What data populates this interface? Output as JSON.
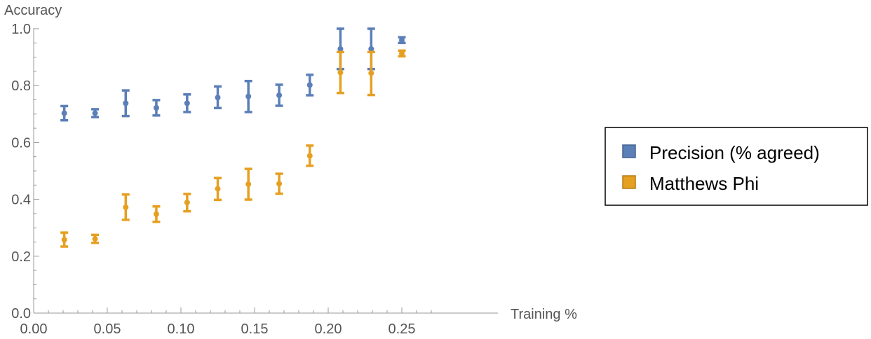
{
  "chart_data": {
    "type": "scatter",
    "title": "",
    "xlabel": "Training %",
    "ylabel": "Accuracy",
    "xlim": [
      0,
      0.27
    ],
    "ylim": [
      0,
      1.0
    ],
    "x_ticks": [
      0.0,
      0.05,
      0.1,
      0.15,
      0.2,
      0.25
    ],
    "x_tick_labels": [
      "0.00",
      "0.05",
      "0.10",
      "0.15",
      "0.20",
      "0.25"
    ],
    "y_ticks": [
      0.0,
      0.2,
      0.4,
      0.6,
      0.8,
      1.0
    ],
    "y_tick_labels": [
      "0.0",
      "0.2",
      "0.4",
      "0.6",
      "0.8",
      "1.0"
    ],
    "grid": false,
    "legend_position": "right",
    "series": [
      {
        "name": "Precision (% agreed)",
        "color": "#5b7fb8",
        "x": [
          0.0208,
          0.0417,
          0.0625,
          0.0833,
          0.1042,
          0.125,
          0.1458,
          0.1667,
          0.1875,
          0.2083,
          0.2292,
          0.25
        ],
        "y": [
          0.703,
          0.703,
          0.738,
          0.722,
          0.738,
          0.758,
          0.762,
          0.766,
          0.802,
          0.929,
          0.929,
          0.96
        ],
        "err_low": [
          0.678,
          0.689,
          0.693,
          0.695,
          0.707,
          0.721,
          0.707,
          0.729,
          0.766,
          0.858,
          0.858,
          0.95
        ],
        "err_high": [
          0.728,
          0.717,
          0.783,
          0.749,
          0.769,
          0.797,
          0.816,
          0.803,
          0.838,
          1.0,
          1.0,
          0.97
        ]
      },
      {
        "name": "Matthews Phi",
        "color": "#e6a021",
        "x": [
          0.0208,
          0.0417,
          0.0625,
          0.0833,
          0.1042,
          0.125,
          0.1458,
          0.1667,
          0.1875,
          0.2083,
          0.2292,
          0.25
        ],
        "y": [
          0.258,
          0.261,
          0.372,
          0.348,
          0.389,
          0.437,
          0.453,
          0.455,
          0.553,
          0.846,
          0.844,
          0.913
        ],
        "err_low": [
          0.234,
          0.247,
          0.328,
          0.321,
          0.358,
          0.398,
          0.399,
          0.42,
          0.518,
          0.774,
          0.767,
          0.903
        ],
        "err_high": [
          0.283,
          0.275,
          0.417,
          0.375,
          0.419,
          0.475,
          0.507,
          0.49,
          0.589,
          0.918,
          0.918,
          0.923
        ]
      }
    ]
  }
}
